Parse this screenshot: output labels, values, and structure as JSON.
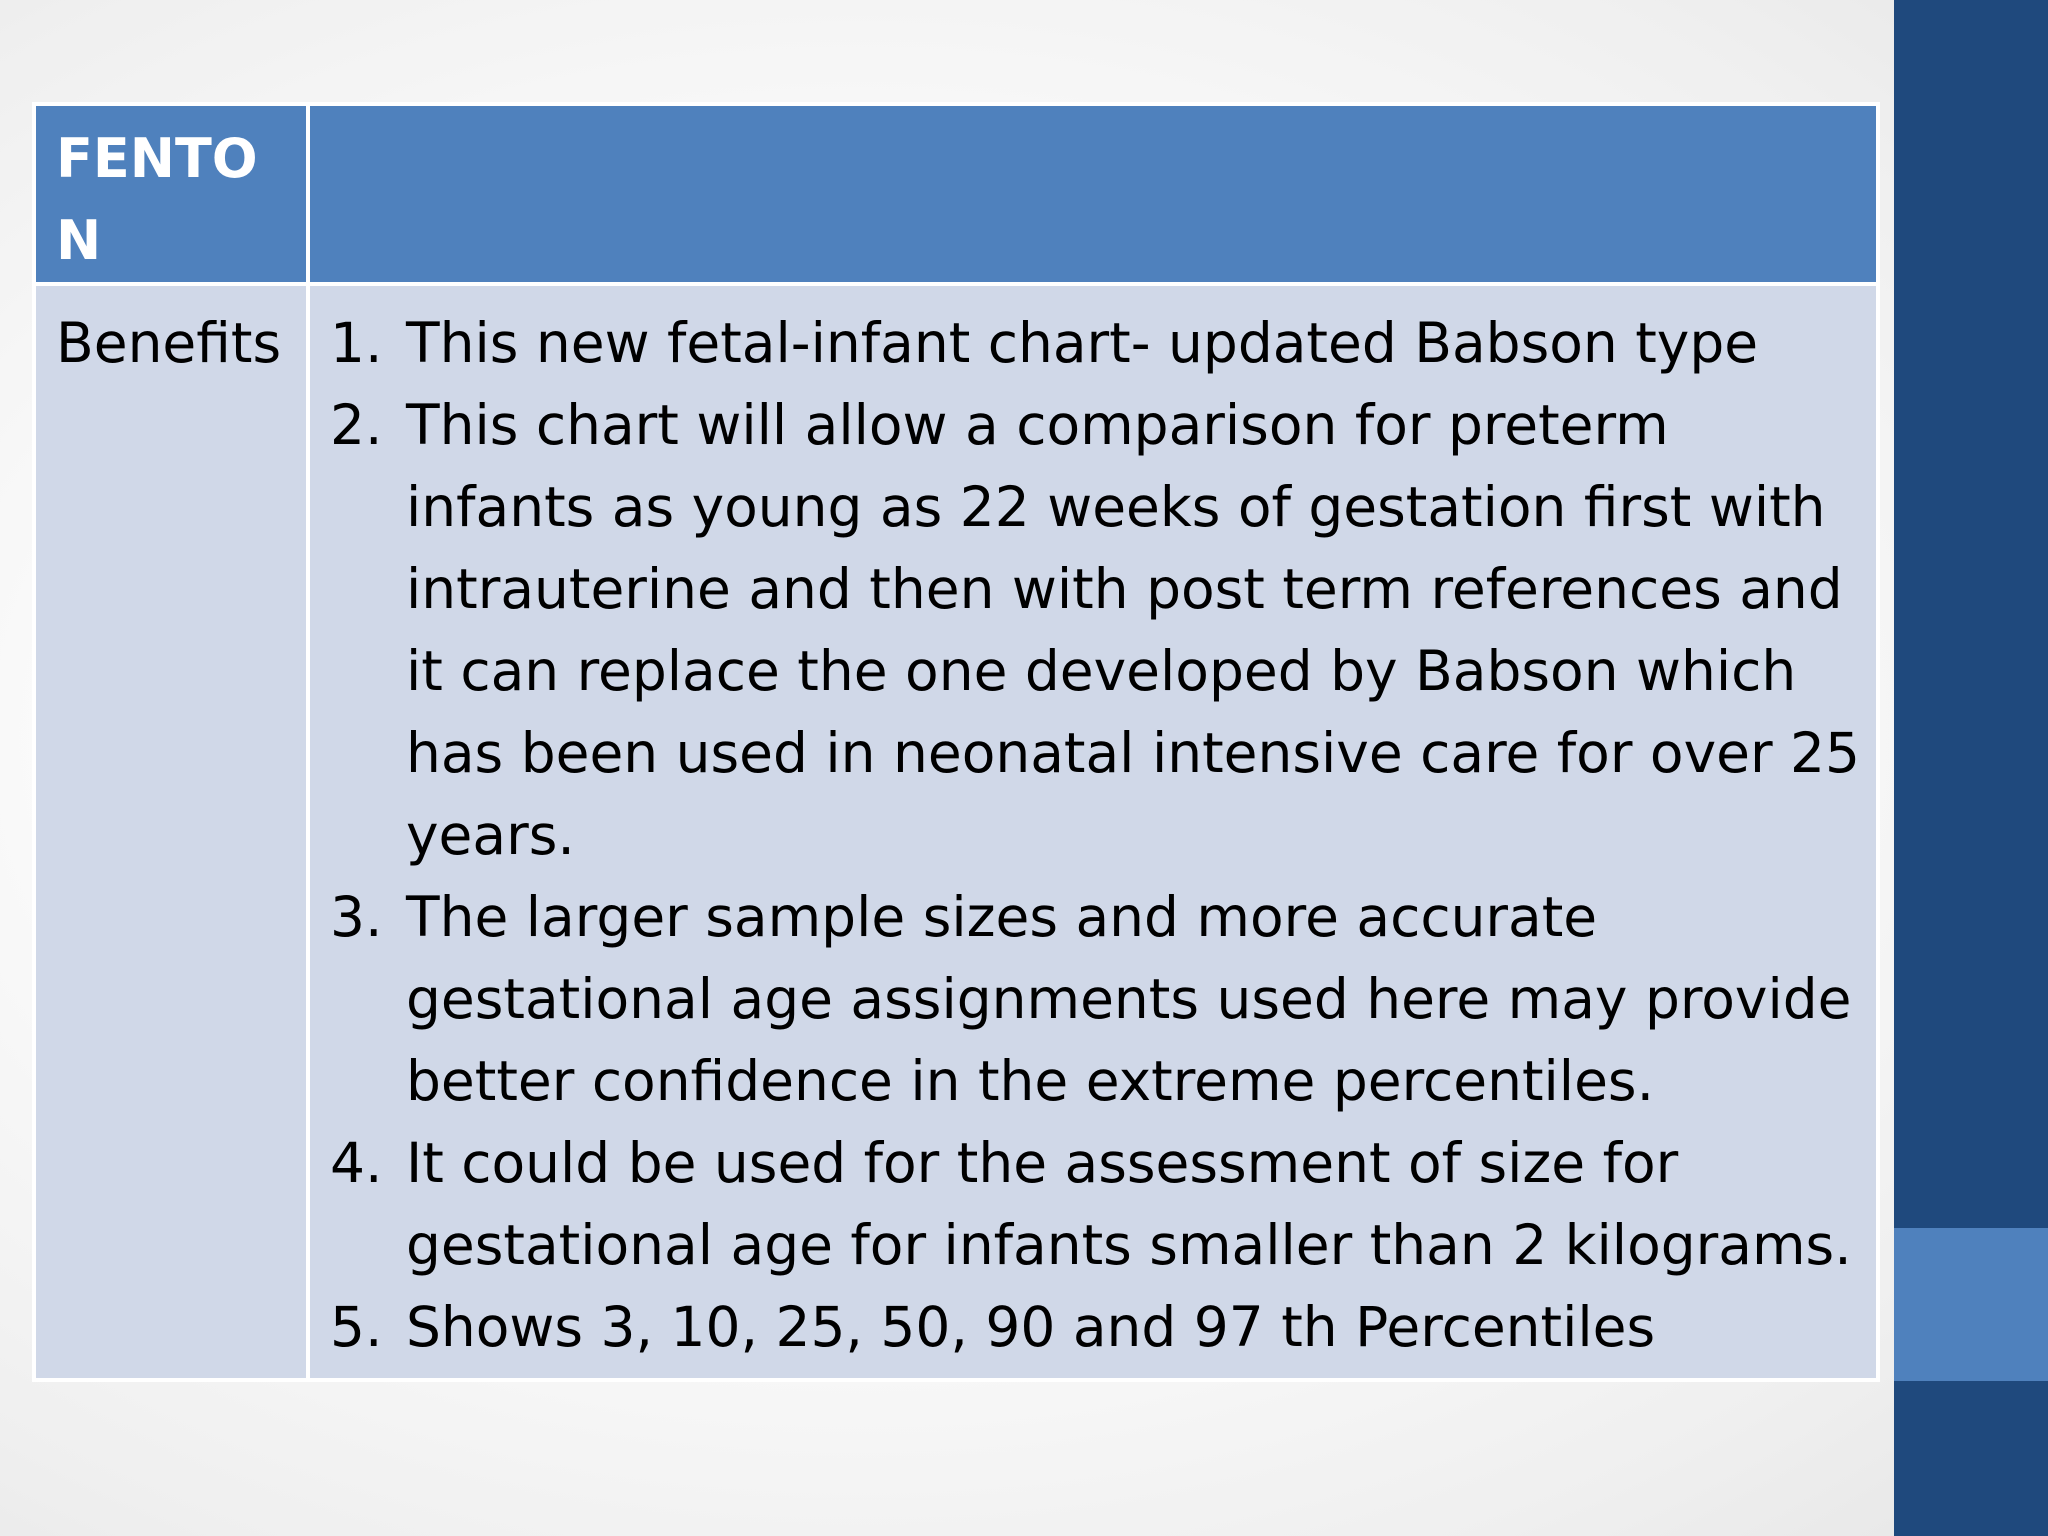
{
  "slide": {
    "table": {
      "header": "FENTON",
      "row_label": "Benefits",
      "benefits": [
        {
          "num": "1.",
          "text": "This new fetal-infant chart- updated Babson type"
        },
        {
          "num": "2.",
          "text": "This chart will allow a comparison for preterm infants as young as 22 weeks of gestation first with intrauterine and then with post term references and it can replace the one developed by Babson which has been used in neonatal intensive care for over 25 years."
        },
        {
          "num": "3.",
          "text": "The larger sample sizes and more accurate gestational age assignments used here may provide better confidence in the extreme percentiles."
        },
        {
          "num": "4.",
          "text": "It  could be used for the assessment of size for gestational age for infants smaller than 2 kilograms."
        },
        {
          "num": "5.",
          "text": "Shows 3, 10, 25, 50, 90 and 97 th Percentiles"
        }
      ]
    }
  },
  "colors": {
    "header_blue": "#4f81bd",
    "row_fill": "#d0d8e8",
    "side_bar": "#1f497d",
    "side_accent": "#4f81bd"
  }
}
